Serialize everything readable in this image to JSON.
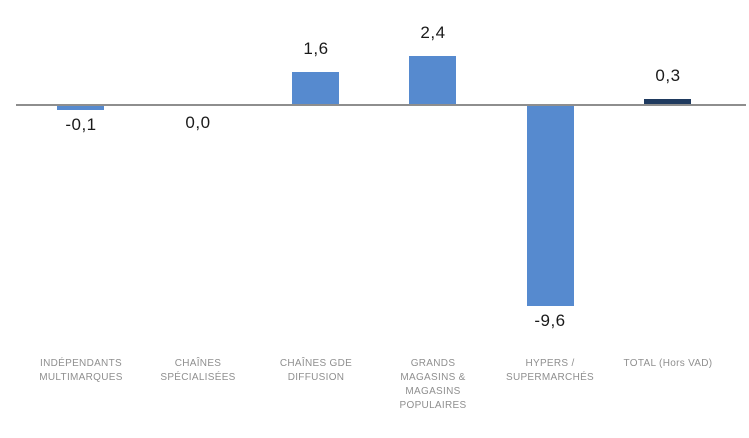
{
  "chart_data": {
    "type": "bar",
    "title": "",
    "xlabel": "",
    "ylabel": "",
    "grid": false,
    "legend": false,
    "ylim": [
      -10.5,
      3.5
    ],
    "decimal_style": "comma",
    "categories": [
      "INDÉPENDANTS MULTIMARQUES",
      "CHAÎNES SPÉCIALISÉES",
      "CHAÎNES GDE DIFFUSION",
      "GRANDS MAGASINS & MAGASINS POPULAIRES",
      "HYPERS / SUPERMARCHÉS",
      "TOTAL (Hors VAD)"
    ],
    "category_lines": [
      [
        "INDÉPENDANTS",
        "MULTIMARQUES"
      ],
      [
        "CHAÎNES",
        "SPÉCIALISÉES"
      ],
      [
        "CHAÎNES GDE",
        "DIFFUSION"
      ],
      [
        "GRANDS",
        "MAGASINS &",
        "MAGASINS",
        "POPULAIRES"
      ],
      [
        "HYPERS /",
        "SUPERMARCHÉS"
      ],
      [
        "TOTAL (Hors VAD)"
      ]
    ],
    "values": [
      -0.1,
      0.0,
      1.6,
      2.4,
      -9.6,
      0.3
    ],
    "value_labels": [
      "-0,1",
      "0,0",
      "1,6",
      "2,4",
      "-9,6",
      "0,3"
    ],
    "bar_colors": [
      "#568ACF",
      "#568ACF",
      "#568ACF",
      "#568ACF",
      "#568ACF",
      "#1F3A5F"
    ],
    "colors": {
      "bar_default": "#568ACF",
      "bar_total": "#1F3A5F",
      "axis_line": "#8E8E8E",
      "value_label": "#1A1A1A",
      "category_label": "#8F8F8F",
      "background": "#FFFFFF"
    }
  }
}
